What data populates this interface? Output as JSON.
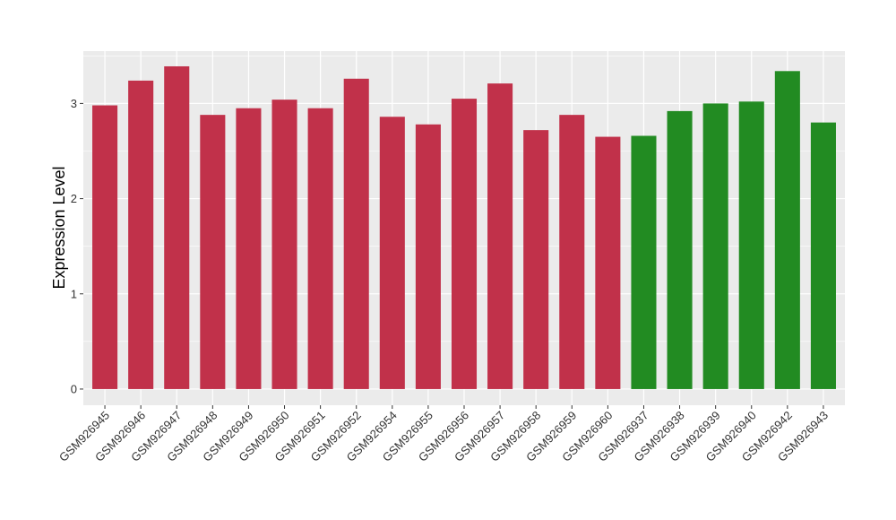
{
  "chart_data": {
    "type": "bar",
    "title": "",
    "xlabel": "",
    "ylabel": "Expression Level",
    "ylim": [
      -0.17,
      3.55
    ],
    "yticks": [
      0,
      1,
      2,
      3
    ],
    "grid": true,
    "legend": "none",
    "categories": [
      "GSM926945",
      "GSM926946",
      "GSM926947",
      "GSM926948",
      "GSM926949",
      "GSM926950",
      "GSM926951",
      "GSM926952",
      "GSM926954",
      "GSM926955",
      "GSM926956",
      "GSM926957",
      "GSM926958",
      "GSM926959",
      "GSM926960",
      "GSM926937",
      "GSM926938",
      "GSM926939",
      "GSM926940",
      "GSM926942",
      "GSM926943"
    ],
    "values": [
      2.98,
      3.24,
      3.39,
      2.88,
      2.95,
      3.04,
      2.95,
      3.26,
      2.86,
      2.78,
      3.05,
      3.21,
      2.72,
      2.88,
      2.65,
      2.66,
      2.92,
      3.0,
      3.02,
      3.34,
      2.8
    ],
    "bar_colors": [
      "#c1314a",
      "#c1314a",
      "#c1314a",
      "#c1314a",
      "#c1314a",
      "#c1314a",
      "#c1314a",
      "#c1314a",
      "#c1314a",
      "#c1314a",
      "#c1314a",
      "#c1314a",
      "#c1314a",
      "#c1314a",
      "#c1314a",
      "#228b22",
      "#228b22",
      "#228b22",
      "#228b22",
      "#228b22",
      "#228b22"
    ],
    "panel_color": "#ebebeb",
    "grid_color": "#ffffff"
  }
}
